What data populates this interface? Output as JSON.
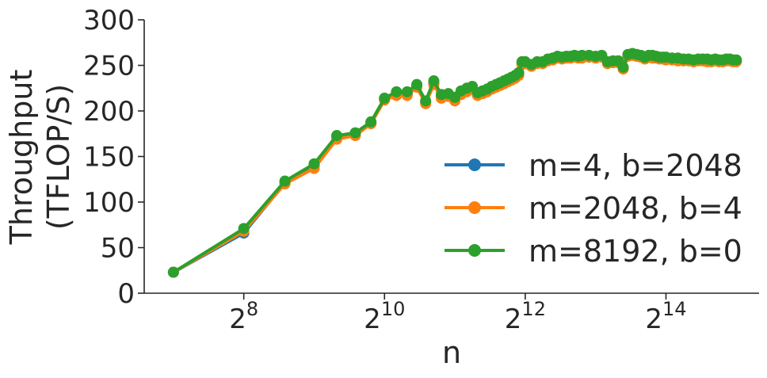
{
  "chart_data": {
    "type": "line",
    "xlabel": "n",
    "ylabel_lines": [
      "Throughput",
      "(TFLOP/S)"
    ],
    "x_scale": "log2",
    "xlim": [
      96,
      41000
    ],
    "ylim": [
      0,
      300
    ],
    "y_ticks": [
      0,
      50,
      100,
      150,
      200,
      250,
      300
    ],
    "x_ticks": [
      {
        "value": 256,
        "base": "2",
        "exp": "8"
      },
      {
        "value": 1024,
        "base": "2",
        "exp": "10"
      },
      {
        "value": 4096,
        "base": "2",
        "exp": "12"
      },
      {
        "value": 16384,
        "base": "2",
        "exp": "14"
      }
    ],
    "grid": false,
    "legend_position": "lower-right",
    "x": [
      128,
      256,
      384,
      512,
      640,
      768,
      896,
      1024,
      1152,
      1280,
      1408,
      1536,
      1664,
      1792,
      1920,
      2048,
      2176,
      2304,
      2432,
      2560,
      2688,
      2816,
      2944,
      3072,
      3200,
      3328,
      3456,
      3584,
      3712,
      3840,
      3968,
      4096,
      4352,
      4608,
      4864,
      5120,
      5376,
      5632,
      5888,
      6144,
      6400,
      6656,
      6912,
      7168,
      7680,
      8192,
      8704,
      9216,
      9728,
      10240,
      10752,
      11264,
      11776,
      12288,
      12800,
      13312,
      13824,
      14336,
      14848,
      15360,
      15872,
      16384,
      17408,
      18432,
      19456,
      20480,
      21504,
      22528,
      23552,
      24576,
      25600,
      26624,
      27648,
      28672,
      29696,
      30720,
      31744,
      32768
    ],
    "series": [
      {
        "name": "m=4, b=2048",
        "color": "#1f77b4",
        "values": [
          23,
          66,
          121,
          140,
          172,
          175,
          187,
          213,
          219,
          219,
          227,
          210,
          230,
          216,
          217,
          213,
          221,
          224,
          226,
          219,
          221,
          223,
          226,
          228,
          230,
          232,
          234,
          236,
          238,
          241,
          252,
          253,
          250,
          253,
          253,
          256,
          257,
          259,
          258,
          259,
          259,
          260,
          259,
          259,
          260,
          259,
          260,
          253,
          254,
          254,
          247,
          261,
          262,
          261,
          260,
          258,
          260,
          260,
          259,
          258,
          258,
          258,
          257,
          257,
          256,
          256,
          255,
          256,
          256,
          256,
          255,
          256,
          255,
          255,
          256,
          256,
          255,
          255
        ]
      },
      {
        "name": "m=2048, b=4",
        "color": "#ff7f0e",
        "values": [
          23,
          68,
          120,
          137,
          169,
          173,
          186,
          212,
          217,
          217,
          226,
          208,
          229,
          214,
          216,
          211,
          218,
          221,
          224,
          217,
          219,
          221,
          224,
          226,
          228,
          230,
          232,
          234,
          236,
          239,
          251,
          252,
          249,
          252,
          252,
          255,
          256,
          258,
          257,
          258,
          258,
          259,
          258,
          258,
          259,
          258,
          259,
          252,
          253,
          253,
          246,
          260,
          261,
          260,
          259,
          257,
          259,
          258,
          258,
          257,
          257,
          256,
          256,
          255,
          255,
          255,
          254,
          255,
          255,
          254,
          254,
          255,
          254,
          254,
          255,
          255,
          254,
          254
        ]
      },
      {
        "name": "m=8192, b=0",
        "color": "#2ca02c",
        "values": [
          23,
          71,
          123,
          142,
          173,
          176,
          188,
          214,
          221,
          221,
          229,
          211,
          233,
          218,
          219,
          215,
          222,
          225,
          227,
          220,
          222,
          224,
          227,
          229,
          231,
          233,
          235,
          237,
          239,
          242,
          254,
          254,
          251,
          254,
          254,
          257,
          258,
          260,
          259,
          260,
          260,
          261,
          260,
          261,
          261,
          260,
          261,
          254,
          255,
          255,
          248,
          262,
          263,
          262,
          261,
          259,
          261,
          261,
          260,
          259,
          259,
          259,
          258,
          258,
          257,
          257,
          256,
          257,
          257,
          257,
          256,
          257,
          256,
          256,
          257,
          257,
          256,
          256
        ]
      }
    ]
  }
}
